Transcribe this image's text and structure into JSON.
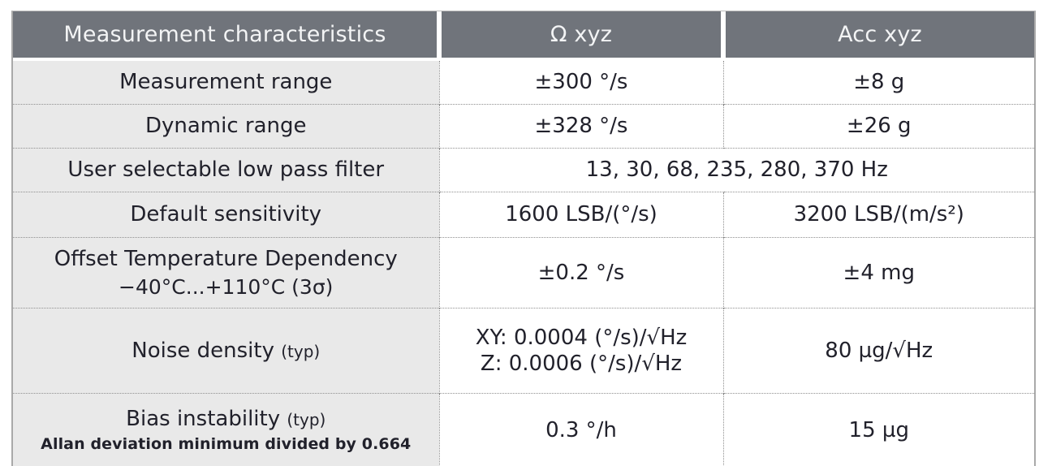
{
  "table": {
    "header": {
      "measurement": "Measurement characteristics",
      "omega": "Ω xyz",
      "acc": "Acc xyz"
    },
    "rows": [
      {
        "label": "Measurement range",
        "omega": "±300 °/s",
        "acc": "±8 g"
      },
      {
        "label": "Dynamic range",
        "omega": "±328 °/s",
        "acc": "±26 g"
      },
      {
        "label": "User selectable low pass filter",
        "merged": "13, 30, 68, 235, 280, 370 Hz"
      },
      {
        "label": "Default sensitivity",
        "omega": "1600 LSB/(°/s)",
        "acc": "3200 LSB/(m/s²)"
      },
      {
        "label": "Offset Temperature Dependency",
        "label_sub": "−40°C...+110°C (3σ)",
        "omega": "±0.2 °/s",
        "acc": "±4 mg"
      },
      {
        "label": "Noise density",
        "label_note": "(typ)",
        "omega_lines": [
          "XY: 0.0004 (°/s)/√Hz",
          "Z: 0.0006 (°/s)/√Hz"
        ],
        "acc": "80 µg/√Hz"
      },
      {
        "label": "Bias instability",
        "label_note": "(typ)",
        "label_sub": "Allan deviation minimum divided by 0.664",
        "omega": "0.3 °/h",
        "acc": "15 µg"
      }
    ]
  },
  "colors": {
    "header_bg": "#70747b",
    "header_text": "#f3f4f5",
    "label_bg": "#e9e9e9",
    "body_text": "#21212b",
    "grid_line": "#8f8f8f",
    "frame_border": "#a9a9a9",
    "frame_bottom": "#90939a"
  }
}
